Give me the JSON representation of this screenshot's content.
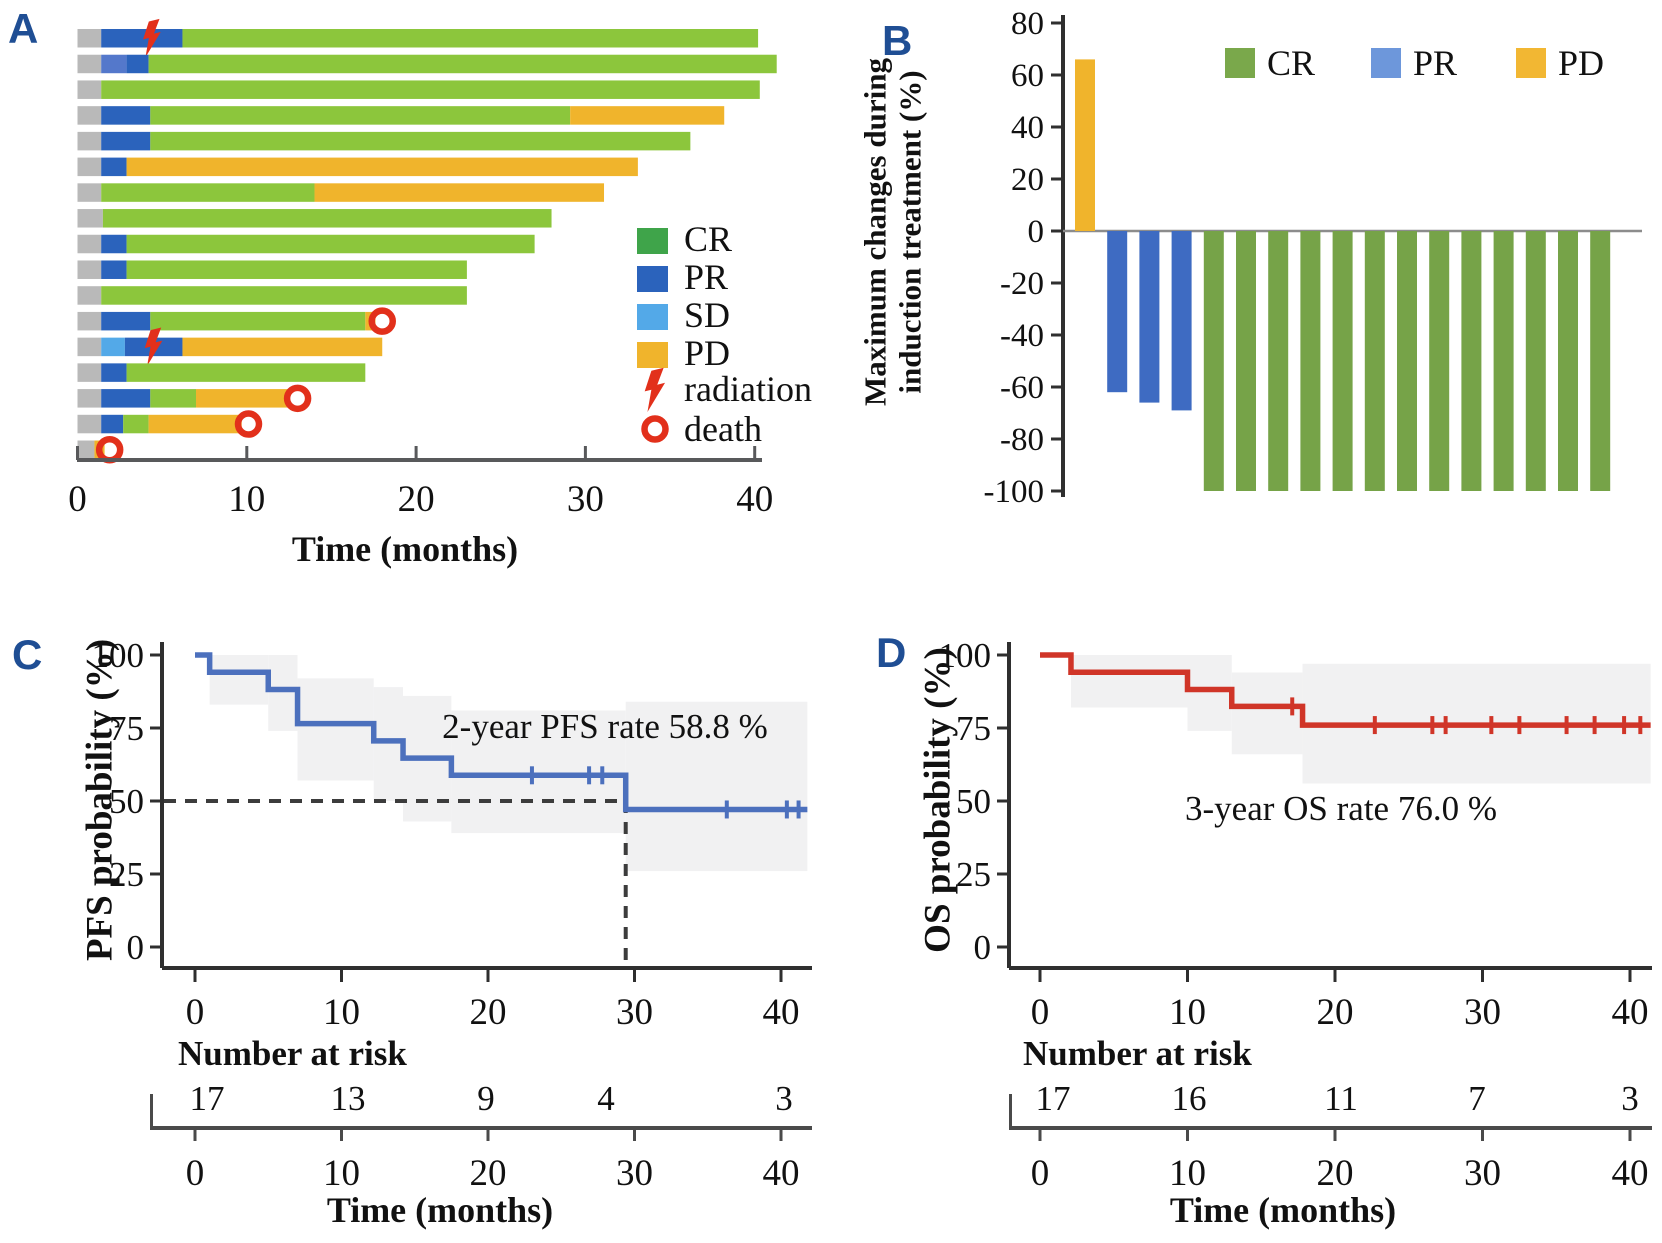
{
  "panel_labels": {
    "a": "A",
    "b": "B",
    "c": "C",
    "d": "D"
  },
  "colors": {
    "panel_letter": "#1F4E94",
    "text": "#111111",
    "axis_a": "#58595B",
    "axis_dark": "#2F2F2F",
    "zero_line_b": "#8C8C8C",
    "ruler": "#4A4A4A",
    "dashed": "#3C3C3C",
    "ci_band": "#F1F1F2",
    "lead_gray": "#B9B9B9",
    "swimmer_cr": "#8CC63C",
    "swimmer_pr": "#2B63BC",
    "swimmer_pr_light": "#5478CB",
    "swimmer_sd": "#53A9E8",
    "swimmer_pd": "#F0B42C",
    "legend_cr": "#3FA44A",
    "legend_pr": "#2B63BC",
    "legend_sd": "#53A9E8",
    "legend_pd": "#F0B42C",
    "b_cr": "#76A348",
    "b_pr": "#3E6BC2",
    "b_pd": "#F0B42C",
    "b_legend_cr": "#7AA84B",
    "b_legend_pr": "#6D97DB",
    "b_legend_pd": "#F2B733",
    "km_pfs": "#4C70BD",
    "km_os": "#D03528",
    "red_marker": "#E2301B"
  },
  "chart_data": [
    {
      "id": "A",
      "type": "swimmer",
      "xlabel": "Time (months)",
      "xticks": [
        0,
        10,
        20,
        30,
        40
      ],
      "xlim": [
        0,
        41.5
      ],
      "legend": [
        {
          "key": "CR",
          "label": "CR"
        },
        {
          "key": "PR",
          "label": "PR"
        },
        {
          "key": "SD",
          "label": "SD"
        },
        {
          "key": "PD",
          "label": "PD"
        }
      ],
      "markers": [
        {
          "key": "radiation",
          "label": "radiation"
        },
        {
          "key": "death",
          "label": "death"
        }
      ],
      "patients": [
        {
          "segments": [
            [
              "lead",
              0,
              1.4
            ],
            [
              "PR",
              1.4,
              6.2
            ],
            [
              "CR",
              6.2,
              40.2
            ]
          ],
          "radiation": 4.4,
          "death": null
        },
        {
          "segments": [
            [
              "lead",
              0,
              1.4
            ],
            [
              "PRlight",
              1.4,
              2.9
            ],
            [
              "PR",
              2.9,
              4.2
            ],
            [
              "CR",
              4.2,
              41.3
            ]
          ],
          "radiation": null,
          "death": null
        },
        {
          "segments": [
            [
              "lead",
              0,
              1.4
            ],
            [
              "CR",
              1.4,
              40.3
            ]
          ],
          "radiation": null,
          "death": null
        },
        {
          "segments": [
            [
              "lead",
              0,
              1.4
            ],
            [
              "PR",
              1.4,
              4.3
            ],
            [
              "CR",
              4.3,
              29.1
            ],
            [
              "PD",
              29.1,
              38.2
            ]
          ],
          "radiation": null,
          "death": null
        },
        {
          "segments": [
            [
              "lead",
              0,
              1.4
            ],
            [
              "PR",
              1.4,
              4.3
            ],
            [
              "CR",
              4.3,
              36.2
            ]
          ],
          "radiation": null,
          "death": null
        },
        {
          "segments": [
            [
              "lead",
              0,
              1.4
            ],
            [
              "PR",
              1.4,
              2.9
            ],
            [
              "PD",
              2.9,
              33.1
            ]
          ],
          "radiation": null,
          "death": null
        },
        {
          "segments": [
            [
              "lead",
              0,
              1.4
            ],
            [
              "CR",
              1.4,
              14.0
            ],
            [
              "PD",
              14.0,
              31.1
            ]
          ],
          "radiation": null,
          "death": null
        },
        {
          "segments": [
            [
              "lead",
              0,
              1.5
            ],
            [
              "CR",
              1.5,
              28.0
            ]
          ],
          "radiation": null,
          "death": null
        },
        {
          "segments": [
            [
              "lead",
              0,
              1.4
            ],
            [
              "PR",
              1.4,
              2.9
            ],
            [
              "CR",
              2.9,
              27.0
            ]
          ],
          "radiation": null,
          "death": null
        },
        {
          "segments": [
            [
              "lead",
              0,
              1.4
            ],
            [
              "PR",
              1.4,
              2.9
            ],
            [
              "CR",
              2.9,
              23.0
            ]
          ],
          "radiation": null,
          "death": null
        },
        {
          "segments": [
            [
              "lead",
              0,
              1.4
            ],
            [
              "CR",
              1.4,
              23.0
            ]
          ],
          "radiation": null,
          "death": null
        },
        {
          "segments": [
            [
              "lead",
              0,
              1.4
            ],
            [
              "PR",
              1.4,
              4.3
            ],
            [
              "CR",
              4.3,
              17.0
            ],
            [
              "PD",
              17.0,
              17.6
            ]
          ],
          "radiation": null,
          "death": 18.0
        },
        {
          "segments": [
            [
              "lead",
              0,
              1.4
            ],
            [
              "SD",
              1.4,
              2.8
            ],
            [
              "PR",
              2.8,
              6.2
            ],
            [
              "PD",
              6.2,
              18.0
            ]
          ],
          "radiation": 4.5,
          "death": null
        },
        {
          "segments": [
            [
              "lead",
              0,
              1.4
            ],
            [
              "PR",
              1.4,
              2.9
            ],
            [
              "CR",
              2.9,
              17.0
            ]
          ],
          "radiation": null,
          "death": null
        },
        {
          "segments": [
            [
              "lead",
              0,
              1.4
            ],
            [
              "PR",
              1.4,
              4.3
            ],
            [
              "CR",
              4.3,
              7.0
            ],
            [
              "PD",
              7.0,
              12.4
            ]
          ],
          "radiation": null,
          "death": 13.0
        },
        {
          "segments": [
            [
              "lead",
              0,
              1.4
            ],
            [
              "PR",
              1.4,
              2.7
            ],
            [
              "CR",
              2.7,
              4.2
            ],
            [
              "PD",
              4.2,
              9.7
            ]
          ],
          "radiation": null,
          "death": 10.1
        },
        {
          "segments": [
            [
              "lead",
              0,
              1.0
            ],
            [
              "PD",
              1.0,
              1.6
            ]
          ],
          "radiation": null,
          "death": 1.9
        }
      ]
    },
    {
      "id": "B",
      "type": "waterfall",
      "ylabel_lines": [
        "Maximum changes during",
        "induction treatment (%)"
      ],
      "yticks": [
        80,
        60,
        40,
        20,
        0,
        -20,
        -40,
        -60,
        -80,
        -100
      ],
      "ylim": [
        -100,
        80
      ],
      "legend": [
        {
          "key": "CR",
          "label": "CR"
        },
        {
          "key": "PR",
          "label": "PR"
        },
        {
          "key": "PD",
          "label": "PD"
        }
      ],
      "bars": [
        {
          "response": "PD",
          "value": 66
        },
        {
          "response": "PR",
          "value": -62
        },
        {
          "response": "PR",
          "value": -66
        },
        {
          "response": "PR",
          "value": -69
        },
        {
          "response": "CR",
          "value": -100
        },
        {
          "response": "CR",
          "value": -100
        },
        {
          "response": "CR",
          "value": -100
        },
        {
          "response": "CR",
          "value": -100
        },
        {
          "response": "CR",
          "value": -100
        },
        {
          "response": "CR",
          "value": -100
        },
        {
          "response": "CR",
          "value": -100
        },
        {
          "response": "CR",
          "value": -100
        },
        {
          "response": "CR",
          "value": -100
        },
        {
          "response": "CR",
          "value": -100
        },
        {
          "response": "CR",
          "value": -100
        },
        {
          "response": "CR",
          "value": -100
        },
        {
          "response": "CR",
          "value": -100
        }
      ]
    },
    {
      "id": "C",
      "type": "km",
      "ylabel": "PFS probability (%)",
      "xlabel": "Time (months)",
      "annotation": "2-year PFS rate 58.8 %",
      "yticks": [
        100,
        75,
        50,
        25,
        0
      ],
      "xticks": [
        0,
        10,
        20,
        30,
        40
      ],
      "steps": [
        [
          0,
          100
        ],
        [
          1,
          94.1
        ],
        [
          5,
          88.2
        ],
        [
          7,
          76.5
        ],
        [
          12.2,
          70.6
        ],
        [
          14.2,
          64.7
        ],
        [
          17.5,
          58.8
        ],
        [
          29.4,
          47.1
        ]
      ],
      "end": 41.8,
      "censors": [
        [
          23,
          58.8
        ],
        [
          26.9,
          58.8
        ],
        [
          27.8,
          58.8
        ],
        [
          36.3,
          47.1
        ],
        [
          40.4,
          47.1
        ],
        [
          41.2,
          47.1
        ]
      ],
      "ci": [
        [
          1,
          5,
          100,
          83
        ],
        [
          5,
          7,
          100,
          74
        ],
        [
          7,
          12.2,
          92,
          57
        ],
        [
          12.2,
          14.2,
          89,
          50
        ],
        [
          14.2,
          17.5,
          86,
          43
        ],
        [
          17.5,
          29.4,
          81,
          39
        ],
        [
          29.4,
          41.8,
          84,
          26
        ]
      ],
      "median": {
        "x": 29.4,
        "level": 50
      },
      "risk_label": "Number at risk",
      "risk": [
        17,
        13,
        9,
        4,
        3
      ]
    },
    {
      "id": "D",
      "type": "km",
      "ylabel": "OS probability (%)",
      "xlabel": "Time (months)",
      "annotation": "3-year OS rate 76.0 %",
      "yticks": [
        100,
        75,
        50,
        25,
        0
      ],
      "xticks": [
        0,
        10,
        20,
        30,
        40
      ],
      "steps": [
        [
          0,
          100
        ],
        [
          2.1,
          94.1
        ],
        [
          10,
          88.2
        ],
        [
          13,
          82.4
        ],
        [
          17.8,
          76.0
        ]
      ],
      "end": 41.4,
      "censors": [
        [
          17.1,
          82.4
        ],
        [
          22.7,
          76.0
        ],
        [
          26.6,
          76.0
        ],
        [
          27.5,
          76.0
        ],
        [
          30.6,
          76.0
        ],
        [
          32.5,
          76.0
        ],
        [
          35.7,
          76.0
        ],
        [
          37.6,
          76.0
        ],
        [
          39.6,
          76.0
        ],
        [
          40.7,
          76.0
        ]
      ],
      "ci": [
        [
          2.1,
          10,
          100,
          82
        ],
        [
          10,
          13,
          100,
          74
        ],
        [
          13,
          17.8,
          94,
          66
        ],
        [
          17.8,
          41.4,
          97,
          56
        ]
      ],
      "median": null,
      "risk_label": "Number at risk",
      "risk": [
        17,
        16,
        11,
        7,
        3
      ]
    }
  ]
}
